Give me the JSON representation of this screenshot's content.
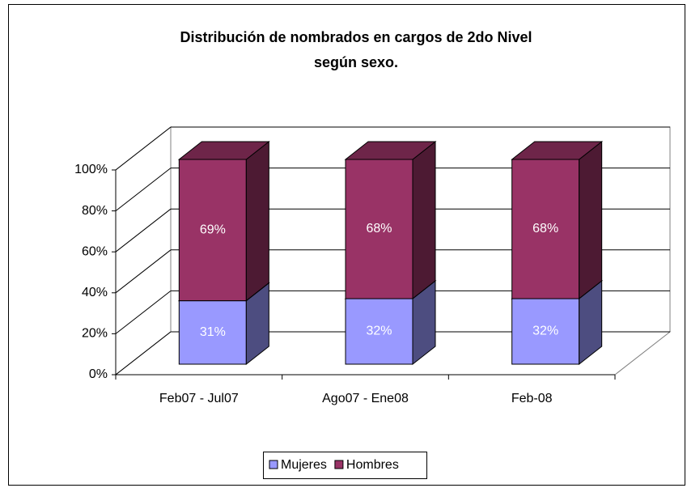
{
  "chart_data": {
    "type": "bar3d_stacked",
    "title": [
      "Distribución de nombrados en cargos de 2do Nivel",
      "según sexo."
    ],
    "categories": [
      "Feb07 - Jul07",
      "Ago07 - Ene08",
      "Feb-08"
    ],
    "series": [
      {
        "name": "Mujeres",
        "color": "#9999ff",
        "values": [
          31,
          32,
          32
        ],
        "value_labels": [
          "31%",
          "32%",
          "32%"
        ]
      },
      {
        "name": "Hombres",
        "color": "#993366",
        "values": [
          69,
          68,
          68
        ],
        "value_labels": [
          "69%",
          "68%",
          "68%"
        ]
      }
    ],
    "ylim": [
      0,
      100
    ],
    "yticks": [
      {
        "value": 0,
        "label": "0%"
      },
      {
        "value": 20,
        "label": "20%"
      },
      {
        "value": 40,
        "label": "40%"
      },
      {
        "value": 60,
        "label": "60%"
      },
      {
        "value": 80,
        "label": "80%"
      },
      {
        "value": 100,
        "label": "100%"
      }
    ],
    "grid": true,
    "legend": "bottom"
  }
}
